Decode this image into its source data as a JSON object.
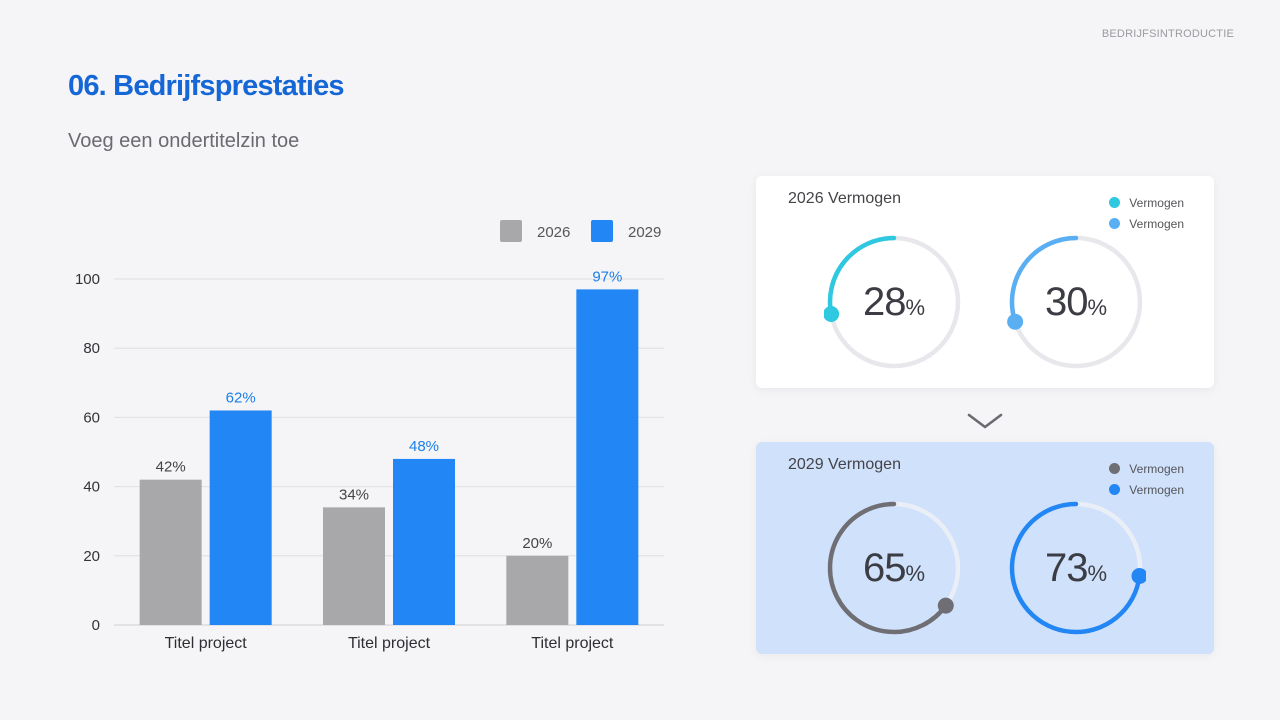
{
  "header": {
    "section_tag": "BEDRIJFSINTRODUCTIE",
    "title": "06. Bedrijfsprestaties",
    "subtitle": "Voeg een ondertitelzin toe"
  },
  "chart_data": {
    "type": "bar",
    "categories": [
      "Titel project",
      "Titel project",
      "Titel project"
    ],
    "series": [
      {
        "name": "2026",
        "values": [
          42,
          34,
          20
        ],
        "labels": [
          "42%",
          "34%",
          "20%"
        ],
        "color": "#a8a8ab",
        "label_color": "#444444"
      },
      {
        "name": "2029",
        "values": [
          62,
          48,
          97
        ],
        "labels": [
          "62%",
          "48%",
          "97%"
        ],
        "color": "#2386f5",
        "label_color": "#1c7ee8"
      }
    ],
    "ylim": [
      0,
      100
    ],
    "yticks": [
      0,
      20,
      40,
      60,
      80,
      100
    ],
    "grid": true,
    "legend": "top-right",
    "title": "",
    "xlabel": "",
    "ylabel": ""
  },
  "cards": [
    {
      "title": "2026 Vermogen",
      "legend": [
        {
          "label": "Vermogen",
          "color": "#2ec8e0"
        },
        {
          "label": "Vermogen",
          "color": "#5aaef2"
        }
      ],
      "gauges": [
        {
          "value": "28",
          "unit": "%",
          "fraction": 0.28,
          "color": "#2ec8e0",
          "track": "#e8e8ec"
        },
        {
          "value": "30",
          "unit": "%",
          "fraction": 0.3,
          "color": "#5aaef2",
          "track": "#e8e8ec"
        }
      ]
    },
    {
      "title": "2029 Vermogen",
      "legend": [
        {
          "label": "Vermogen",
          "color": "#6e6e74"
        },
        {
          "label": "Vermogen",
          "color": "#2386f5"
        }
      ],
      "gauges": [
        {
          "value": "65",
          "unit": "%",
          "fraction": 0.65,
          "color": "#6e6e74",
          "track": "#e9eef7"
        },
        {
          "value": "73",
          "unit": "%",
          "fraction": 0.73,
          "color": "#2386f5",
          "track": "#e9eef7"
        }
      ]
    }
  ],
  "arrow": {
    "icon": "chevron-down-icon",
    "color": "#6a6a70"
  }
}
